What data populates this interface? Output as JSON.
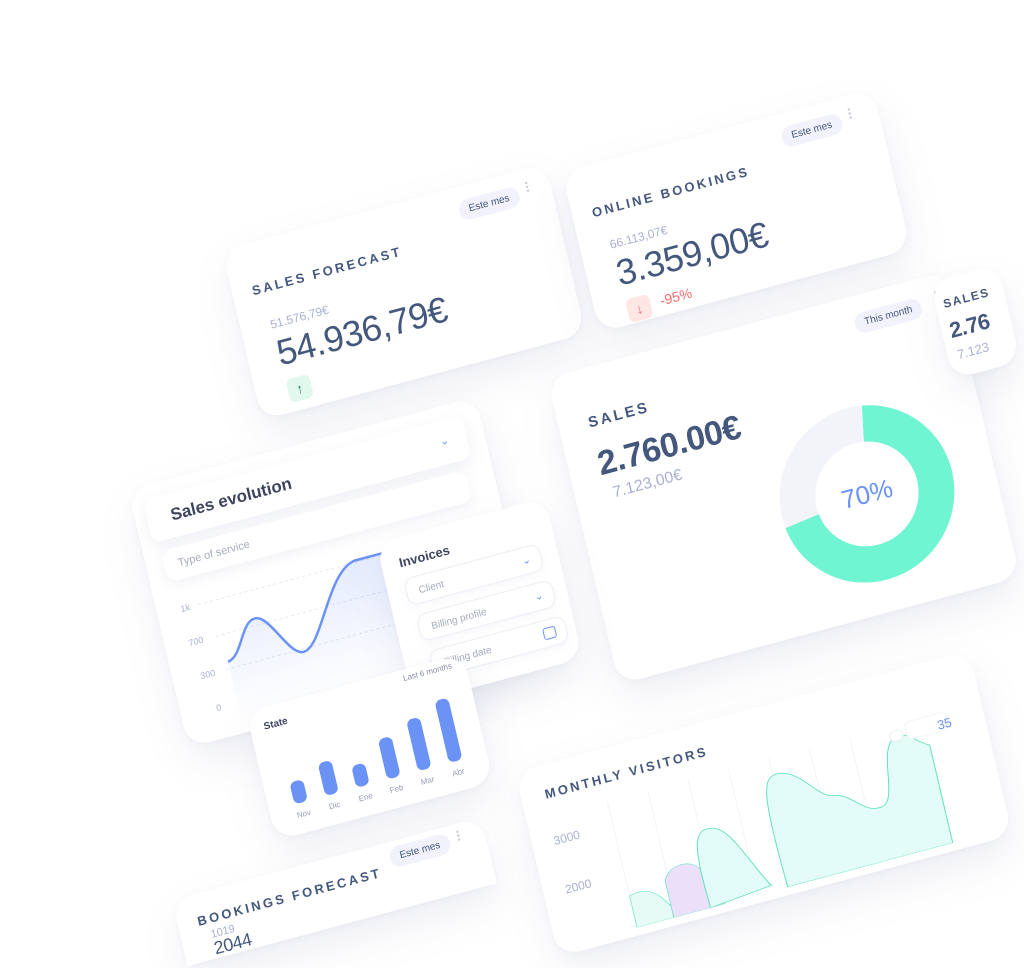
{
  "colors": {
    "primary_text": "#44587e",
    "muted": "#a9b0d2",
    "accent_blue": "#6b93f5",
    "accent_teal": "#6ff5d2",
    "negative": "#f26b6b",
    "positive": "#3a8a5c"
  },
  "sales_forecast": {
    "title": "Sales forecast",
    "period": "Este mes",
    "previous": "51.576,79€",
    "value": "54.936,79€",
    "trend_icon": "arrow-up-icon"
  },
  "online_bookings": {
    "title": "Online bookings",
    "period": "Este mes",
    "previous": "66.113,07€",
    "value": "3.359,00€",
    "change": "-95%",
    "trend_icon": "arrow-down-icon"
  },
  "sales": {
    "title": "Sales",
    "period": "This month",
    "value": "2.760.00€",
    "secondary": "7.123,00€",
    "percent_label": "70%",
    "percent": 70
  },
  "sales_partial": {
    "title": "Sales",
    "value": "2.76",
    "secondary": "7.123"
  },
  "sales_evolution": {
    "title": "Sales evolution",
    "service_placeholder": "Type of service",
    "y_ticks": [
      "1k",
      "700",
      "300",
      "0"
    ]
  },
  "invoices": {
    "title": "Invoices",
    "client_placeholder": "Client",
    "billing_placeholder": "Billing profile",
    "date_placeholder": "Billing date"
  },
  "state": {
    "title": "State",
    "period": "Last 6 months",
    "categories": [
      "Nov",
      "Dic",
      "Ene",
      "Feb",
      "Mar",
      "Abr"
    ],
    "values": [
      30,
      45,
      30,
      55,
      70,
      85
    ]
  },
  "monthly_visitors": {
    "title": "Monthly visitors",
    "y_ticks": [
      "3000",
      "2000"
    ],
    "tooltip": "35"
  },
  "bookings_forecast": {
    "title": "Bookings forecast",
    "period": "Este mes",
    "previous": "1019",
    "value": "2044"
  }
}
